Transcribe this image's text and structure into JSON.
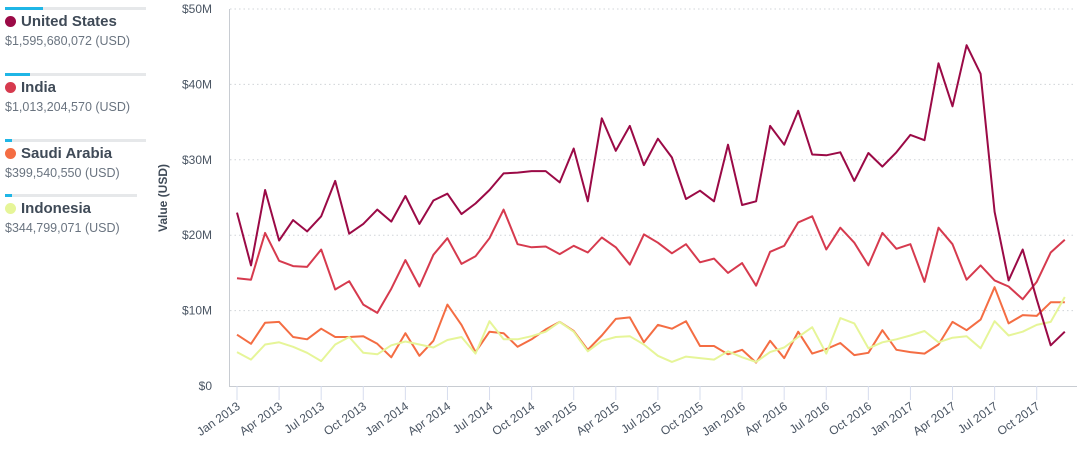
{
  "legend": [
    {
      "name": "United States",
      "total": "$1,595,680,072 (USD)",
      "color": "#9b0a46",
      "share": 0.27
    },
    {
      "name": "India",
      "total": "$1,013,204,570 (USD)",
      "color": "#d63a4e",
      "share": 0.18
    },
    {
      "name": "Saudi Arabia",
      "total": "$399,540,550 (USD)",
      "color": "#f46d43",
      "share": 0.05
    },
    {
      "name": "Indonesia",
      "total": "$344,799,071 (USD)",
      "color": "#e6f598",
      "share": 0.05
    }
  ],
  "chart_data": {
    "type": "line",
    "ylabel": "Value (USD)",
    "ylim": [
      0,
      50
    ],
    "yticks": [
      "$0",
      "$10M",
      "$20M",
      "$30M",
      "$40M",
      "$50M"
    ],
    "xticks": [
      "Jan 2013",
      "Apr 2013",
      "Jul 2013",
      "Oct 2013",
      "Jan 2014",
      "Apr 2014",
      "Jul 2014",
      "Oct 2014",
      "Jan 2015",
      "Apr 2015",
      "Jul 2015",
      "Oct 2015",
      "Jan 2016",
      "Apr 2016",
      "Jul 2016",
      "Oct 2016",
      "Jan 2017",
      "Apr 2017",
      "Jul 2017",
      "Oct 2017"
    ],
    "x_range": "Jan 2013 - Dec 2017 (monthly)",
    "units": "millions USD",
    "series": [
      {
        "name": "United States",
        "color": "#9b0a46",
        "values": [
          23,
          16,
          26,
          19.3,
          22,
          20.5,
          22.5,
          27.2,
          20.2,
          21.5,
          23.4,
          21.8,
          25.2,
          21.5,
          24.6,
          25.5,
          22.8,
          24.2,
          26,
          28.2,
          28.3,
          28.5,
          28.5,
          27,
          31.5,
          24.5,
          35.5,
          31.2,
          34.5,
          29.3,
          32.8,
          30.3,
          24.8,
          25.9,
          24.5,
          32,
          24,
          24.5,
          34.5,
          32,
          36.5,
          30.7,
          30.6,
          31,
          27.2,
          30.9,
          29.1,
          31,
          33.3,
          32.6,
          42.8,
          37.1,
          45.2,
          41.4,
          23.1,
          14,
          18.1,
          11.5,
          5.4,
          7.2
        ]
      },
      {
        "name": "India",
        "color": "#d63a4e",
        "values": [
          14.3,
          14.1,
          20.3,
          16.6,
          15.9,
          15.8,
          18.1,
          12.8,
          13.9,
          10.8,
          9.7,
          12.9,
          16.7,
          13.2,
          17.4,
          19.6,
          16.2,
          17.2,
          19.6,
          23.4,
          18.8,
          18.4,
          18.5,
          17.5,
          18.6,
          17.7,
          19.7,
          18.4,
          16.1,
          20.1,
          19,
          17.6,
          18.8,
          16.4,
          16.9,
          15,
          16.3,
          13.3,
          17.8,
          18.6,
          21.7,
          22.5,
          18.1,
          21,
          19,
          16,
          20.3,
          18.2,
          18.8,
          13.8,
          21,
          18.8,
          14.1,
          16,
          14,
          13.2,
          11.5,
          13.8,
          17.7,
          19.4
        ]
      },
      {
        "name": "Saudi Arabia",
        "color": "#f46d43",
        "values": [
          6.8,
          5.6,
          8.4,
          8.5,
          6.5,
          6.2,
          7.6,
          6.5,
          6.5,
          6.6,
          5.6,
          3.8,
          7,
          4,
          6,
          10.8,
          8.1,
          4.5,
          7.2,
          7,
          5.2,
          6.2,
          7.5,
          8.5,
          7.3,
          4.8,
          6.7,
          8.9,
          9.1,
          5.8,
          8.1,
          7.6,
          8.6,
          5.3,
          5.3,
          4.2,
          4.8,
          3.1,
          6,
          3.7,
          7.2,
          4.3,
          4.9,
          5.7,
          4.1,
          4.4,
          7.4,
          4.8,
          4.5,
          4.3,
          5.5,
          8.5,
          7.4,
          8.8,
          13.1,
          8.3,
          9.4,
          9.3,
          11.1,
          11.1
        ]
      },
      {
        "name": "Indonesia",
        "color": "#e6f598",
        "values": [
          4.5,
          3.5,
          5.5,
          5.8,
          5.2,
          4.4,
          3.3,
          5.5,
          6.5,
          4.4,
          4.2,
          5.4,
          5.9,
          5.5,
          5.1,
          6.1,
          6.5,
          4.3,
          8.6,
          6.2,
          6.2,
          6.6,
          7.2,
          8.5,
          7.2,
          4.6,
          6,
          6.5,
          6.6,
          5.5,
          4,
          3.2,
          3.9,
          3.7,
          3.5,
          4.6,
          3.8,
          3.2,
          4.5,
          5.1,
          6.5,
          7.8,
          4.3,
          9,
          8.3,
          5,
          5.8,
          6.2,
          6.7,
          7.3,
          5.8,
          6.4,
          6.6,
          5,
          8.6,
          6.7,
          7.2,
          8.1,
          8.5,
          11.8
        ]
      }
    ]
  }
}
